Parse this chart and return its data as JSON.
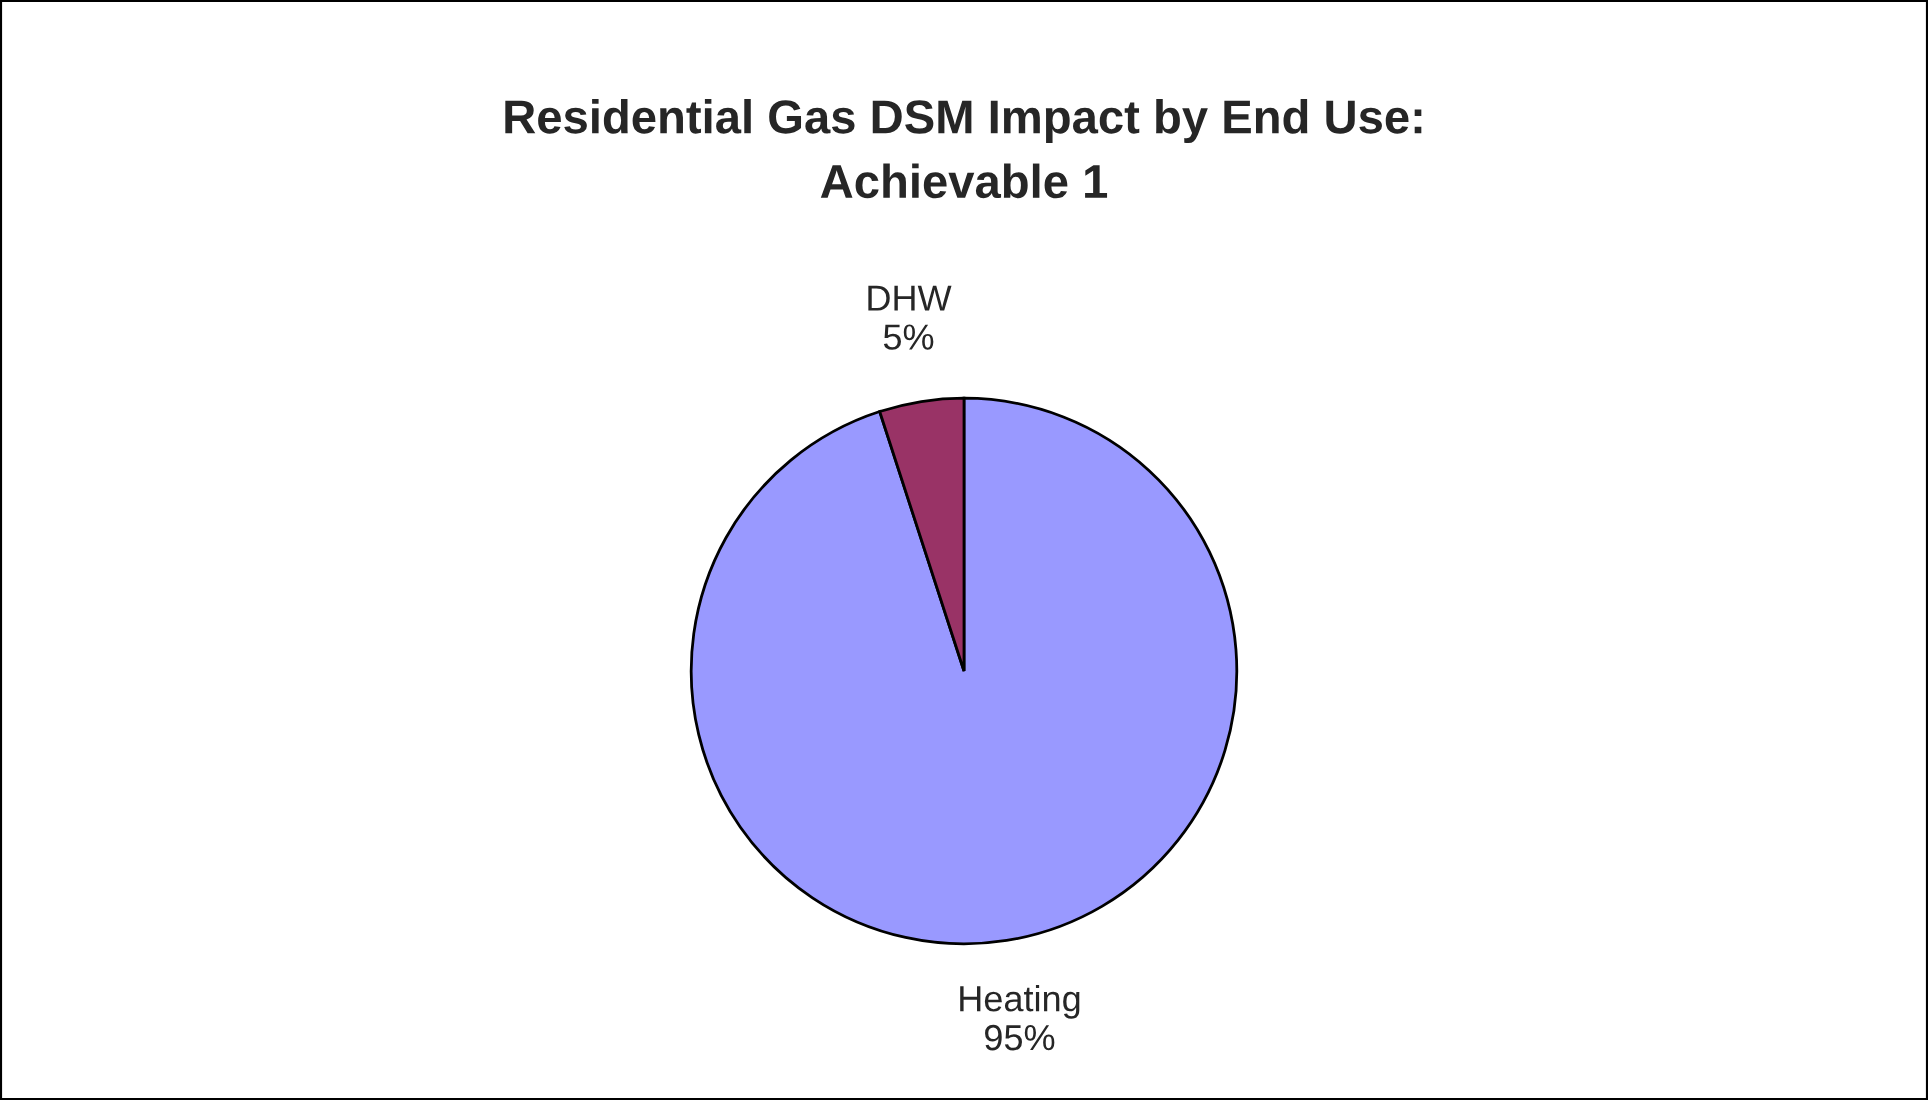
{
  "chart_data": {
    "type": "pie",
    "title": "Residential Gas DSM Impact by End Use:\nAchievable 1",
    "categories": [
      "Heating",
      "DHW"
    ],
    "values": [
      95,
      5
    ],
    "value_labels": [
      "95%",
      "5%"
    ],
    "colors": [
      "#9999ff",
      "#993366"
    ],
    "legend": false
  }
}
